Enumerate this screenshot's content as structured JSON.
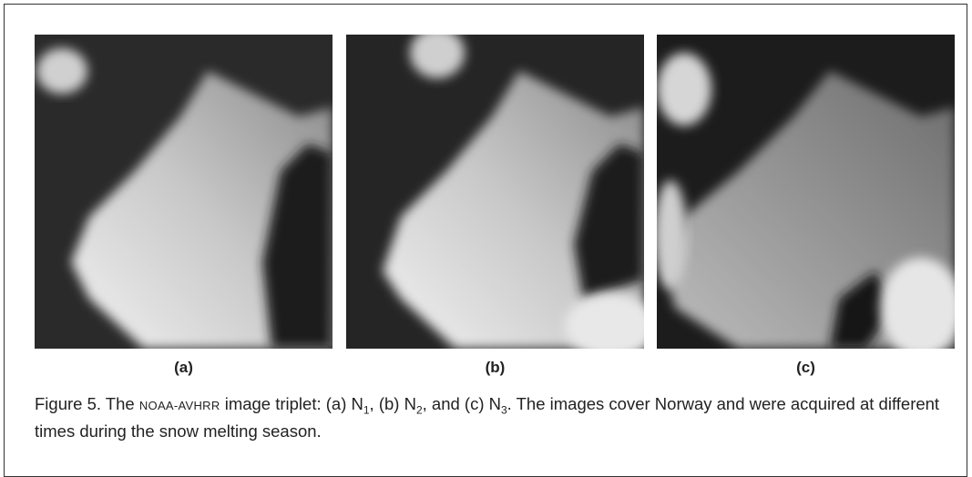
{
  "figure": {
    "panels": [
      {
        "label": "(a)"
      },
      {
        "label": "(b)"
      },
      {
        "label": "(c)"
      }
    ],
    "caption": {
      "segments": [
        "Figure 5. The ",
        "NOAA-AVHRR",
        " image triplet: (a) N",
        "1",
        ", (b) N",
        "2",
        ", and (c) N",
        "3",
        ". The images cover Norway and were acquired at different times during the snow melting season."
      ]
    }
  }
}
